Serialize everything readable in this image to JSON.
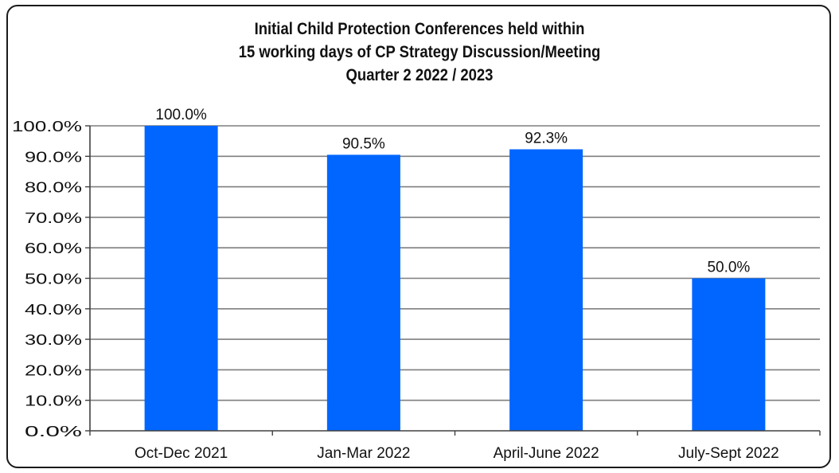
{
  "chart_data": {
    "type": "bar",
    "title": [
      "Initial Child Protection Conferences held within",
      "15 working days of CP Strategy Discussion/Meeting",
      "Quarter 2 2022 / 2023"
    ],
    "xlabel": "",
    "ylabel": "",
    "categories": [
      "Oct-Dec 2021",
      "Jan-Mar 2022",
      "April-June 2022",
      "July-Sept 2022"
    ],
    "values": [
      100.0,
      90.5,
      92.3,
      50.0
    ],
    "data_labels": [
      "100.0%",
      "90.5%",
      "92.3%",
      "50.0%"
    ],
    "ylim": [
      0,
      100
    ],
    "y_ticks": [
      0,
      10,
      20,
      30,
      40,
      50,
      60,
      70,
      80,
      90,
      100
    ],
    "y_tick_labels": [
      "0.0%",
      "10.0%",
      "20.0%",
      "30.0%",
      "40.0%",
      "50.0%",
      "60.0%",
      "70.0%",
      "80.0%",
      "90.0%",
      "100.0%"
    ],
    "grid": true,
    "legend": "none",
    "colors": {
      "bar": "#0066ff",
      "grid": "#7f7f7f",
      "axis": "#404040",
      "frame": "#1a1a1a"
    }
  }
}
